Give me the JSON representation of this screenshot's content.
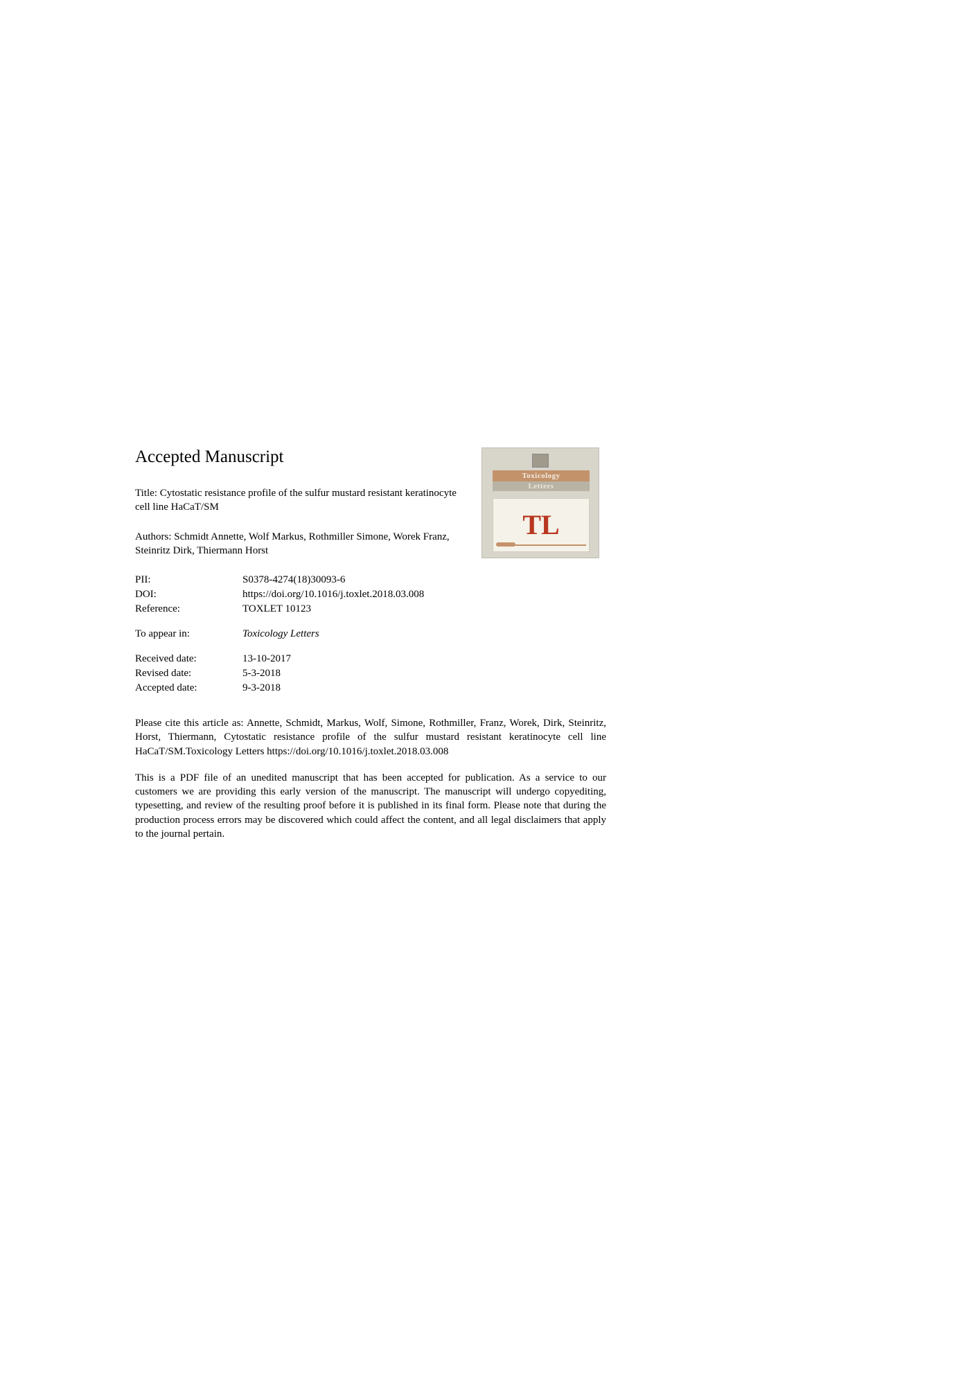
{
  "heading": "Accepted Manuscript",
  "title": "Title: Cytostatic resistance profile of the sulfur mustard resistant keratinocyte cell line HaCaT/SM",
  "authors": "Authors: Schmidt Annette, Wolf Markus, Rothmiller Simone, Worek Franz, Steinritz Dirk, Thiermann Horst",
  "metadata": {
    "pii_label": "PII:",
    "pii_value": "S0378-4274(18)30093-6",
    "doi_label": "DOI:",
    "doi_value": "https://doi.org/10.1016/j.toxlet.2018.03.008",
    "reference_label": "Reference:",
    "reference_value": "TOXLET 10123",
    "appear_label": "To appear in:",
    "appear_value": "Toxicology Letters",
    "received_label": "Received date:",
    "received_value": "13-10-2017",
    "revised_label": "Revised date:",
    "revised_value": "5-3-2018",
    "accepted_label": "Accepted date:",
    "accepted_value": "9-3-2018"
  },
  "citation": "Please cite this article as: Annette, Schmidt, Markus, Wolf, Simone, Rothmiller, Franz, Worek, Dirk, Steinritz, Horst, Thiermann, Cytostatic resistance profile of the sulfur mustard resistant keratinocyte cell line HaCaT/SM.Toxicology Letters https://doi.org/10.1016/j.toxlet.2018.03.008",
  "disclaimer": "This is a PDF file of an unedited manuscript that has been accepted for publication. As a service to our customers we are providing this early version of the manuscript. The manuscript will undergo copyediting, typesetting, and review of the resulting proof before it is published in its final form. Please note that during the production process errors may be discovered which could affect the content, and all legal disclaimers that apply to the journal pertain.",
  "cover": {
    "line1": "Toxicology",
    "line2": "Letters",
    "logo": "TL"
  }
}
